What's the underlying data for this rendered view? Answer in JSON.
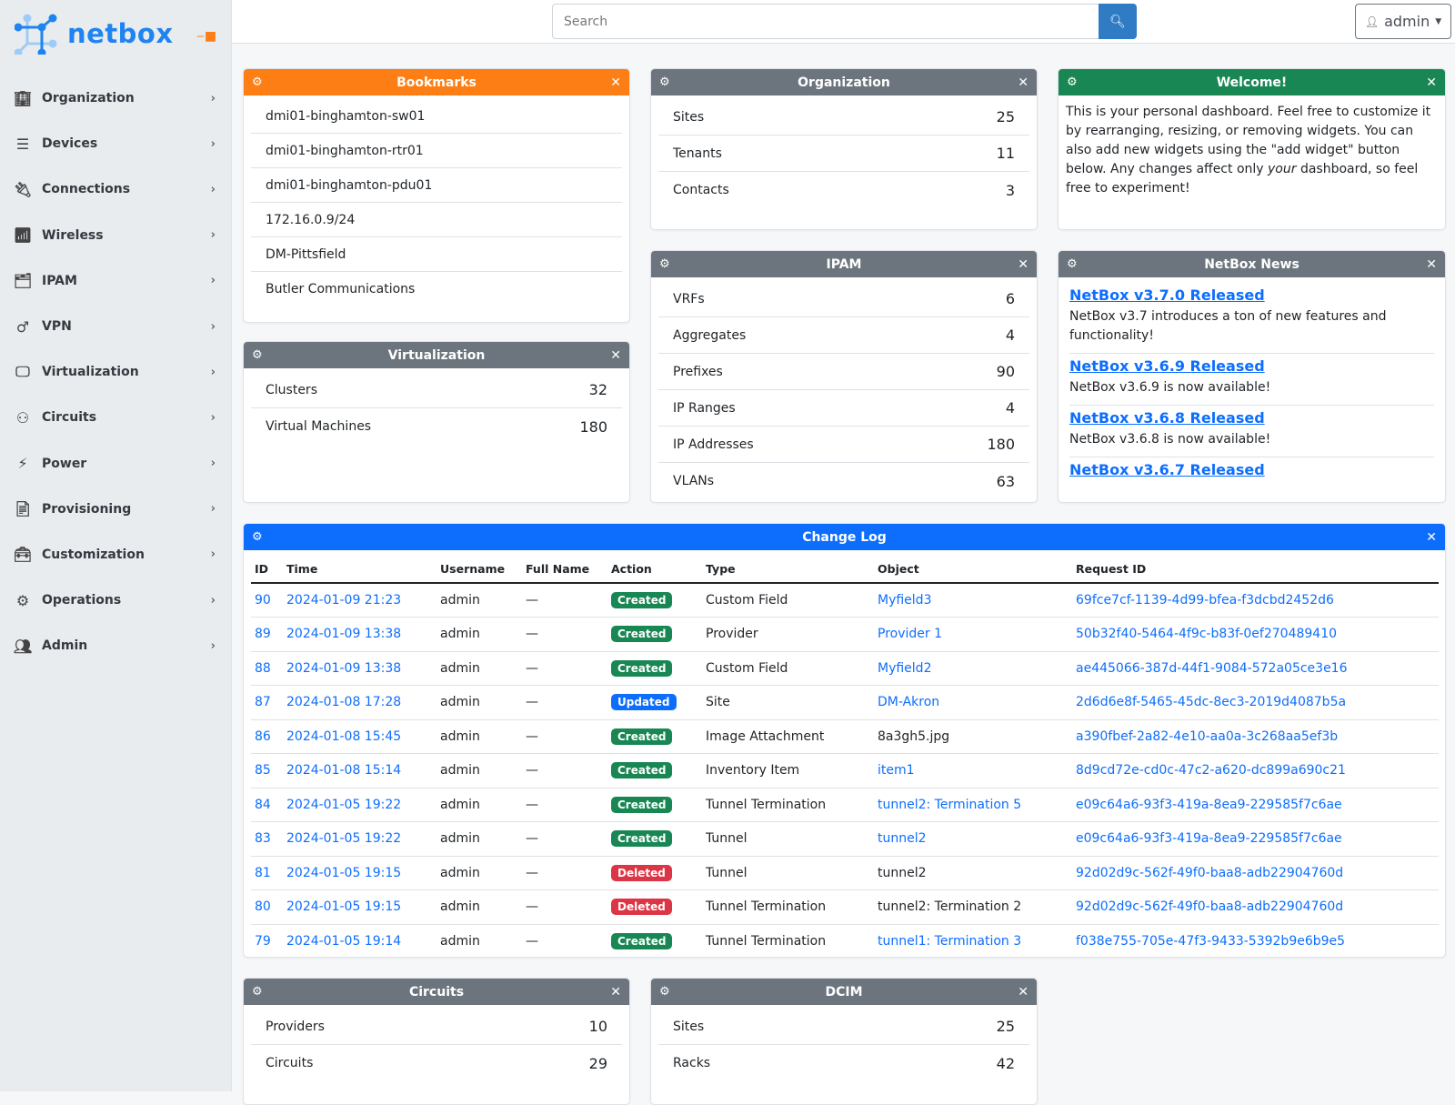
{
  "brand": {
    "name": "netbox",
    "accent": "#1f84f0"
  },
  "sidebar": {
    "items": [
      {
        "label": "Organization",
        "icon": "domain-icon"
      },
      {
        "label": "Devices",
        "icon": "server-icon"
      },
      {
        "label": "Connections",
        "icon": "plug-icon"
      },
      {
        "label": "Wireless",
        "icon": "wifi-icon"
      },
      {
        "label": "IPAM",
        "icon": "counter-icon"
      },
      {
        "label": "VPN",
        "icon": "graph-icon"
      },
      {
        "label": "Virtualization",
        "icon": "monitor-icon"
      },
      {
        "label": "Circuits",
        "icon": "transit-icon"
      },
      {
        "label": "Power",
        "icon": "lightning-icon"
      },
      {
        "label": "Provisioning",
        "icon": "file-icon"
      },
      {
        "label": "Customization",
        "icon": "toolbox-icon"
      },
      {
        "label": "Operations",
        "icon": "cogs-icon"
      },
      {
        "label": "Admin",
        "icon": "users-icon"
      }
    ]
  },
  "topbar": {
    "search_placeholder": "Search",
    "user": "admin"
  },
  "widgets": {
    "bookmarks": {
      "title": "Bookmarks",
      "items": [
        "dmi01-binghamton-sw01",
        "dmi01-binghamton-rtr01",
        "dmi01-binghamton-pdu01",
        "172.16.0.9/24",
        "DM-Pittsfield",
        "Butler Communications"
      ]
    },
    "organization": {
      "title": "Organization",
      "items": [
        {
          "label": "Sites",
          "count": "25"
        },
        {
          "label": "Tenants",
          "count": "11"
        },
        {
          "label": "Contacts",
          "count": "3"
        }
      ]
    },
    "welcome": {
      "title": "Welcome!",
      "text_1": "This is your personal dashboard. Feel free to customize it by rearranging, resizing, or removing widgets. You can also add new widgets using the \"add widget\" button below. Any changes affect only ",
      "text_em": "your",
      "text_2": " dashboard, so feel free to experiment!"
    },
    "virtualization": {
      "title": "Virtualization",
      "items": [
        {
          "label": "Clusters",
          "count": "32"
        },
        {
          "label": "Virtual Machines",
          "count": "180"
        }
      ]
    },
    "ipam": {
      "title": "IPAM",
      "items": [
        {
          "label": "VRFs",
          "count": "6"
        },
        {
          "label": "Aggregates",
          "count": "4"
        },
        {
          "label": "Prefixes",
          "count": "90"
        },
        {
          "label": "IP Ranges",
          "count": "4"
        },
        {
          "label": "IP Addresses",
          "count": "180"
        },
        {
          "label": "VLANs",
          "count": "63"
        }
      ]
    },
    "news": {
      "title": "NetBox News",
      "items": [
        {
          "title": "NetBox v3.7.0 Released",
          "text": "NetBox v3.7 introduces a ton of new features and functionality!"
        },
        {
          "title": "NetBox v3.6.9 Released",
          "text": "NetBox v3.6.9 is now available!"
        },
        {
          "title": "NetBox v3.6.8 Released",
          "text": "NetBox v3.6.8 is now available!"
        },
        {
          "title": "NetBox v3.6.7 Released",
          "text": ""
        }
      ]
    },
    "changelog": {
      "title": "Change Log",
      "columns": [
        "ID",
        "Time",
        "Username",
        "Full Name",
        "Action",
        "Type",
        "Object",
        "Request ID"
      ],
      "rows": [
        [
          "90",
          "2024-01-09 21:23",
          "admin",
          "—",
          "Created",
          "Custom Field",
          "Myfield3",
          "69fce7cf-1139-4d99-bfea-f3dcbd2452d6"
        ],
        [
          "89",
          "2024-01-09 13:38",
          "admin",
          "—",
          "Created",
          "Provider",
          "Provider 1",
          "50b32f40-5464-4f9c-b83f-0ef270489410"
        ],
        [
          "88",
          "2024-01-09 13:38",
          "admin",
          "—",
          "Created",
          "Custom Field",
          "Myfield2",
          "ae445066-387d-44f1-9084-572a05ce3e16"
        ],
        [
          "87",
          "2024-01-08 17:28",
          "admin",
          "—",
          "Updated",
          "Site",
          "DM-Akron",
          "2d6d6e8f-5465-45dc-8ec3-2019d4087b5a"
        ],
        [
          "86",
          "2024-01-08 15:45",
          "admin",
          "—",
          "Created",
          "Image Attachment",
          "8a3gh5.jpg",
          "a390fbef-2a82-4e10-aa0a-3c268aa5ef3b"
        ],
        [
          "85",
          "2024-01-08 15:14",
          "admin",
          "—",
          "Created",
          "Inventory Item",
          "item1",
          "8d9cd72e-cd0c-47c2-a620-dc899a690c21"
        ],
        [
          "84",
          "2024-01-05 19:22",
          "admin",
          "—",
          "Created",
          "Tunnel Termination",
          "tunnel2: Termination 5",
          "e09c64a6-93f3-419a-8ea9-229585f7c6ae"
        ],
        [
          "83",
          "2024-01-05 19:22",
          "admin",
          "—",
          "Created",
          "Tunnel",
          "tunnel2",
          "e09c64a6-93f3-419a-8ea9-229585f7c6ae"
        ],
        [
          "81",
          "2024-01-05 19:15",
          "admin",
          "—",
          "Deleted",
          "Tunnel",
          "tunnel2",
          "92d02d9c-562f-49f0-baa8-adb22904760d"
        ],
        [
          "80",
          "2024-01-05 19:15",
          "admin",
          "—",
          "Deleted",
          "Tunnel Termination",
          "tunnel2: Termination 2",
          "92d02d9c-562f-49f0-baa8-adb22904760d"
        ],
        [
          "79",
          "2024-01-05 19:14",
          "admin",
          "—",
          "Created",
          "Tunnel Termination",
          "tunnel1: Termination 3",
          "f038e755-705e-47f3-9433-5392b9e6b9e5"
        ]
      ],
      "object_linked": [
        true,
        true,
        true,
        true,
        false,
        true,
        true,
        true,
        false,
        false,
        true
      ],
      "action_colors": {
        "Created": "#198754",
        "Updated": "#0d6efd",
        "Deleted": "#dc3545"
      }
    },
    "circuits": {
      "title": "Circuits",
      "items": [
        {
          "label": "Providers",
          "count": "10"
        },
        {
          "label": "Circuits",
          "count": "29"
        }
      ]
    },
    "dcim": {
      "title": "DCIM",
      "items": [
        {
          "label": "Sites",
          "count": "25"
        },
        {
          "label": "Racks",
          "count": "42"
        }
      ]
    }
  }
}
